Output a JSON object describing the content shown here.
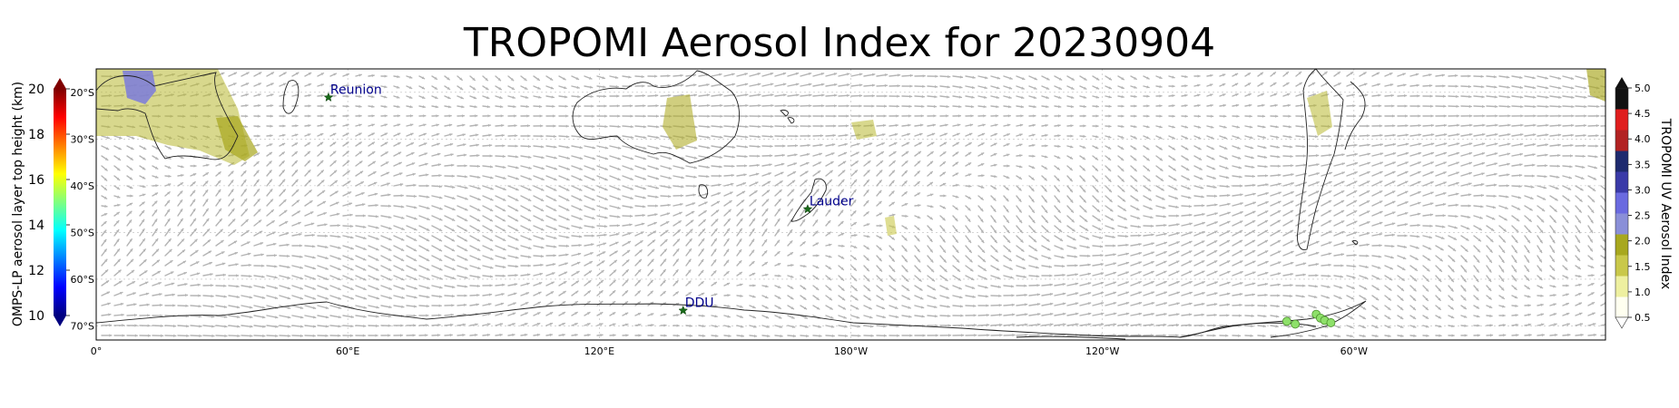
{
  "title": "TROPOMI Aerosol Index for 20230904",
  "map": {
    "lon_ticks": [
      "0°",
      "60°E",
      "120°E",
      "180°W",
      "120°W",
      "60°W"
    ],
    "lat_ticks": [
      "20°S",
      "30°S",
      "40°S",
      "50°S",
      "60°S",
      "70°S"
    ],
    "stations": [
      {
        "name": "Reunion",
        "lon": 55.4,
        "lat": -21.1
      },
      {
        "name": "Lauder",
        "lon": 169.7,
        "lat": -45.0
      },
      {
        "name": "DDU",
        "lon": 140.0,
        "lat": -66.7
      }
    ],
    "omps_points": [
      {
        "lon": 284.0,
        "lat": -69.0
      },
      {
        "lon": 286.0,
        "lat": -69.6
      },
      {
        "lon": 291.0,
        "lat": -67.5
      },
      {
        "lon": 292.0,
        "lat": -68.3
      },
      {
        "lon": 293.0,
        "lat": -68.8
      },
      {
        "lon": 294.5,
        "lat": -69.3
      }
    ]
  },
  "left_colorbar": {
    "label": "OMPS-LP aerosol layer top height (km)",
    "ticks": [
      "10",
      "12",
      "14",
      "16",
      "18",
      "20"
    ],
    "colors": [
      "#00007f",
      "#0000ff",
      "#007fff",
      "#00ffff",
      "#7fff7f",
      "#ffff00",
      "#ff7f00",
      "#ff0000",
      "#7f0000"
    ]
  },
  "right_colorbar": {
    "label": "TROPOMI UV Aerosol Index",
    "ticks": [
      "0.5",
      "1.0",
      "1.5",
      "2.0",
      "2.5",
      "3.0",
      "3.5",
      "4.0",
      "4.5",
      "5.0"
    ],
    "colors": [
      "#fffff0",
      "#eef0a0",
      "#c9c84a",
      "#a8a81e",
      "#8a8fd8",
      "#6a6ae0",
      "#3a3aa8",
      "#1e2a6e",
      "#b22222",
      "#e01e1e",
      "#111111"
    ]
  }
}
